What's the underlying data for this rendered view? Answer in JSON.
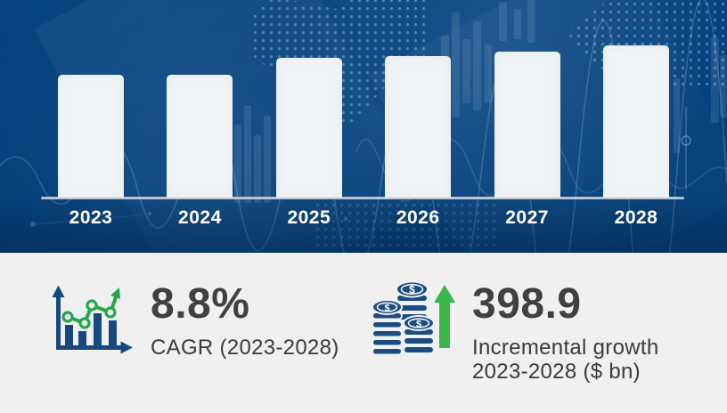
{
  "chart_data": {
    "type": "bar",
    "title": "",
    "xlabel": "",
    "ylabel": "",
    "categories": [
      "2023",
      "2024",
      "2025",
      "2026",
      "2027",
      "2028"
    ],
    "values": [
      138,
      138,
      157,
      159,
      164,
      171
    ],
    "values_note": "no numeric y-axis shown; values are depicted bar heights in screen pixels, baseline at axis line",
    "grid": "off",
    "legend": "none",
    "bar_color": "#f1f4f7",
    "axis_line_color": "#ccd2d9",
    "background_color": "#05417c",
    "tick_label_color": "#ffffff"
  },
  "stats": {
    "cagr": {
      "value": "8.8%",
      "label": "CAGR (2023-2028)",
      "icon": "growth-chart-icon"
    },
    "incremental_growth": {
      "value": "398.9",
      "label_line1": "Incremental growth",
      "label_line2": "2023-2028 ($ bn)",
      "icon": "coins-icon",
      "arrow_icon": "up-arrow-icon"
    }
  },
  "colors": {
    "hero_background": "#05417c",
    "stats_background": "#f0f0f1",
    "stat_number": "#404040",
    "stat_label": "#3a3a3a",
    "icon_blue": "#1b4b80",
    "icon_green_line": "#22a84a",
    "icon_green_arrow": "#3bb54a"
  }
}
